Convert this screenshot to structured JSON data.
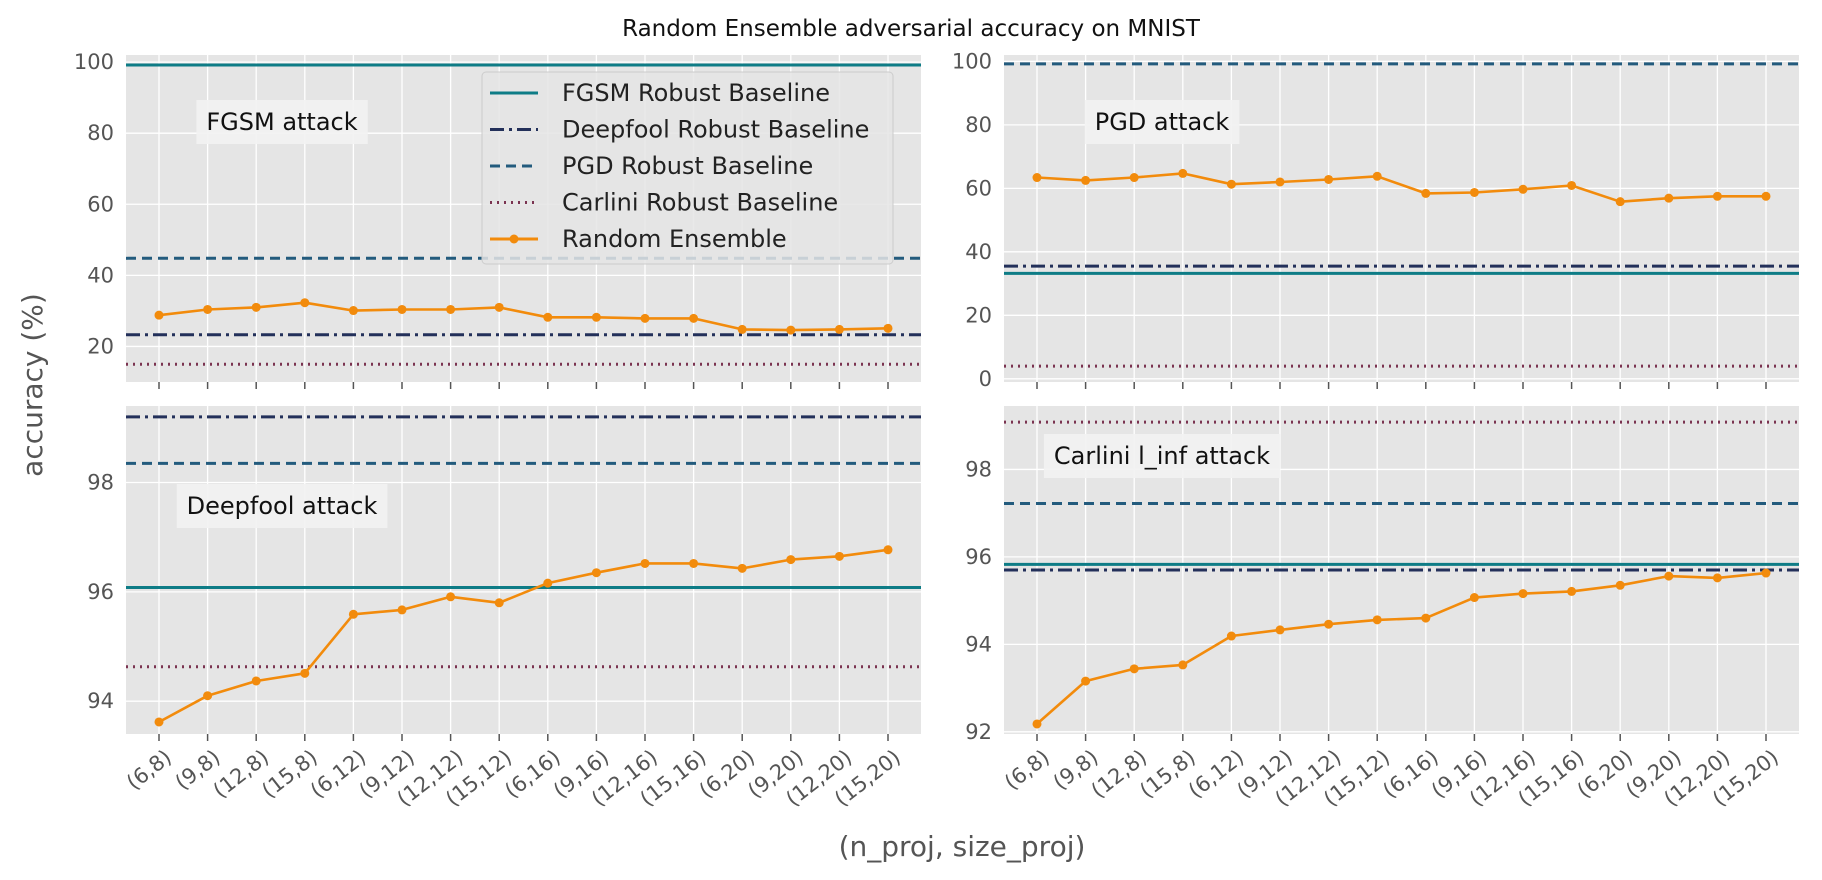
{
  "colors": {
    "fgsm": "#0e7c86",
    "deepfool": "#23305a",
    "pgd": "#235b7d",
    "carlini": "#7a3350",
    "ensemble": "#f28b0c",
    "panel_bg": "#e5e5e5",
    "grid": "#ffffff"
  },
  "chart_data": {
    "type": "line",
    "title": "Random Ensemble adversarial accuracy on MNIST",
    "xlabel": "(n_proj, size_proj)",
    "ylabel": "accuracy (%)",
    "categories": [
      "(6,8)",
      "(9,8)",
      "(12,8)",
      "(15,8)",
      "(6,12)",
      "(9,12)",
      "(12,12)",
      "(15,12)",
      "(6,16)",
      "(9,16)",
      "(12,16)",
      "(15,16)",
      "(6,20)",
      "(9,20)",
      "(12,20)",
      "(15,20)"
    ],
    "legend": {
      "placement": "top-right of first panel",
      "entries": [
        {
          "label": "FGSM Robust Baseline",
          "style": "solid",
          "color_key": "fgsm"
        },
        {
          "label": "Deepfool Robust Baseline",
          "style": "dashdot",
          "color_key": "deepfool"
        },
        {
          "label": "PGD Robust Baseline",
          "style": "dashed",
          "color_key": "pgd"
        },
        {
          "label": "Carlini Robust Baseline",
          "style": "dotted",
          "color_key": "carlini"
        },
        {
          "label": "Random Ensemble",
          "style": "line-marker",
          "color_key": "ensemble"
        }
      ]
    },
    "panels": [
      {
        "annotation": "FGSM attack",
        "ylim": [
          10,
          102
        ],
        "yticks": [
          20,
          40,
          60,
          80,
          100
        ],
        "baselines": {
          "fgsm": 99.2,
          "deepfool": 23.3,
          "pgd": 44.8,
          "carlini": 15.0
        },
        "ensemble": [
          28.8,
          30.4,
          31.0,
          32.3,
          30.1,
          30.4,
          30.4,
          31.0,
          28.2,
          28.2,
          27.9,
          27.9,
          24.8,
          24.6,
          24.8,
          25.1
        ]
      },
      {
        "annotation": "PGD attack",
        "ylim": [
          -1,
          102
        ],
        "yticks": [
          0,
          20,
          40,
          60,
          80,
          100
        ],
        "baselines": {
          "fgsm": 33.2,
          "deepfool": 35.5,
          "pgd": 99.2,
          "carlini": 4.0
        },
        "ensemble": [
          63.4,
          62.5,
          63.4,
          64.7,
          61.3,
          62.0,
          62.8,
          63.8,
          58.4,
          58.7,
          59.7,
          60.9,
          55.8,
          56.9,
          57.5,
          57.5
        ]
      },
      {
        "annotation": "Deepfool attack",
        "ylim": [
          93.4,
          99.4
        ],
        "yticks": [
          94,
          96,
          98
        ],
        "baselines": {
          "fgsm": 96.08,
          "deepfool": 99.2,
          "pgd": 98.35,
          "carlini": 94.63
        },
        "ensemble": [
          93.62,
          94.1,
          94.37,
          94.51,
          95.59,
          95.67,
          95.91,
          95.8,
          96.16,
          96.35,
          96.52,
          96.52,
          96.43,
          96.59,
          96.65,
          96.77
        ]
      },
      {
        "annotation": "Carlini l_inf attack",
        "ylim": [
          91.95,
          99.45
        ],
        "yticks": [
          92,
          94,
          96,
          98
        ],
        "baselines": {
          "fgsm": 95.83,
          "deepfool": 95.7,
          "pgd": 97.22,
          "carlini": 99.08
        },
        "ensemble": [
          92.18,
          93.16,
          93.44,
          93.53,
          94.19,
          94.33,
          94.46,
          94.56,
          94.6,
          95.07,
          95.16,
          95.21,
          95.35,
          95.56,
          95.52,
          95.63
        ]
      }
    ]
  }
}
